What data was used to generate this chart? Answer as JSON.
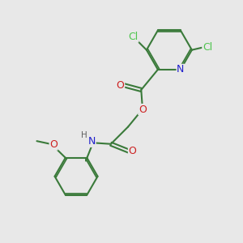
{
  "bg_color": "#e8e8e8",
  "bond_color": "#3a7a3a",
  "atom_colors": {
    "Cl": "#4dc44d",
    "N": "#2020cc",
    "O": "#cc2020",
    "H": "#606060",
    "C": "#3a7a3a"
  },
  "line_width": 1.5,
  "font_size": 9,
  "figsize": [
    3.0,
    3.0
  ],
  "dpi": 100,
  "xlim": [
    0,
    10
  ],
  "ylim": [
    0,
    10
  ]
}
